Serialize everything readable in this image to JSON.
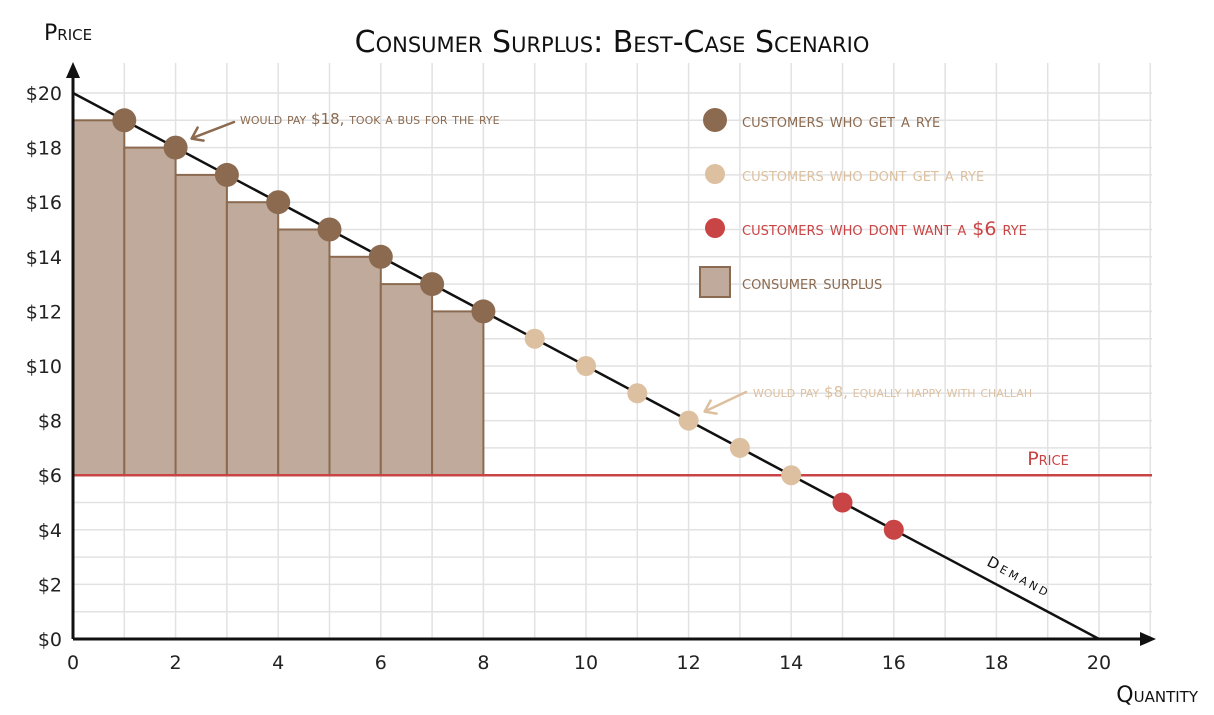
{
  "chart_data": {
    "type": "line",
    "title": "Consumer Surplus: Best-Case Scenario",
    "ylabel": "Price",
    "xlabel": "Quantity",
    "xlim": [
      0,
      20
    ],
    "ylim": [
      0,
      20
    ],
    "x_ticks": [
      0,
      2,
      4,
      6,
      8,
      10,
      12,
      14,
      16,
      18,
      20
    ],
    "x_tick_labels": [
      "0",
      "2",
      "4",
      "6",
      "8",
      "10",
      "12",
      "14",
      "16",
      "18",
      "20"
    ],
    "y_ticks": [
      0,
      2,
      4,
      6,
      8,
      10,
      12,
      14,
      16,
      18,
      20
    ],
    "y_tick_labels": [
      "$0",
      "$2",
      "$4",
      "$6",
      "$8",
      "$10",
      "$12",
      "$14",
      "$16",
      "$18",
      "$20"
    ],
    "grid": true,
    "demand": {
      "label": "Demand",
      "points": [
        [
          0,
          20
        ],
        [
          20,
          0
        ]
      ]
    },
    "price_line": {
      "label": "Price",
      "y": 6
    },
    "surplus_bars": {
      "label": "consumer surplus",
      "x": [
        1,
        2,
        3,
        4,
        5,
        6,
        7,
        8
      ],
      "y": [
        19,
        18,
        17,
        16,
        15,
        14,
        13,
        12
      ]
    },
    "series": [
      {
        "name": "customers who get a rye",
        "x": [
          1,
          2,
          3,
          4,
          5,
          6,
          7,
          8
        ],
        "y": [
          19,
          18,
          17,
          16,
          15,
          14,
          13,
          12
        ]
      },
      {
        "name": "customers who dont get a rye",
        "x": [
          9,
          10,
          11,
          12,
          13,
          14
        ],
        "y": [
          11,
          10,
          9,
          8,
          7,
          6
        ]
      },
      {
        "name": "customers who dont want a $6 rye",
        "x": [
          15,
          16
        ],
        "y": [
          5,
          4
        ]
      }
    ],
    "annotations": [
      {
        "text": "would pay $18, took a bus for the rye",
        "x": 2,
        "y": 18
      },
      {
        "text": "would pay $8, equally happy with challah",
        "x": 12,
        "y": 8
      }
    ],
    "legend_position": "top-right"
  },
  "colors": {
    "get": "#8b6a50",
    "dont_get": "#dcc0a0",
    "dont_want": "#c94444",
    "surplus_fill": "#bfaa9c",
    "surplus_stroke": "#8b6a50",
    "price_line": "#c94444",
    "grid": "#e2e2e2",
    "axis": "#111111"
  }
}
